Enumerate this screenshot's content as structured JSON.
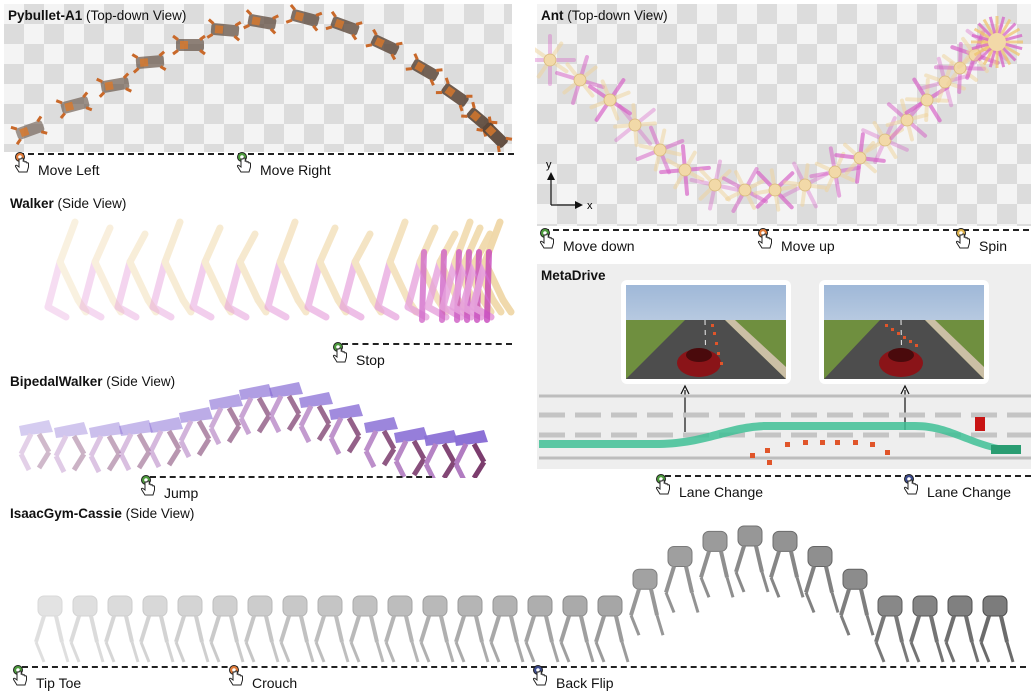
{
  "panels": {
    "pybullet": {
      "name": "Pybullet-A1",
      "view": "(Top-down View)",
      "markers": [
        "Move Left",
        "Move Right"
      ],
      "marker_colors": [
        "#e07b39",
        "#4c9a3c"
      ]
    },
    "ant": {
      "name": "Ant",
      "view": "(Top-down View)",
      "markers": [
        "Move down",
        "Move up",
        "Spin"
      ],
      "marker_colors": [
        "#4c9a3c",
        "#e07b39",
        "#e0b44c"
      ],
      "axis_x": "x",
      "axis_y": "y"
    },
    "walker": {
      "name": "Walker",
      "view": "(Side View)",
      "markers": [
        "Stop"
      ],
      "marker_colors": [
        "#4c9a3c"
      ]
    },
    "metadrive": {
      "name": "MetaDrive",
      "markers": [
        "Lane Change",
        "Lane Change"
      ],
      "marker_colors": [
        "#4c9a3c",
        "#3b4a8c"
      ]
    },
    "bipedal": {
      "name": "BipedalWalker",
      "view": "(Side View)",
      "markers": [
        "Jump"
      ],
      "marker_colors": [
        "#4c9a3c"
      ]
    },
    "cassie": {
      "name": "IsaacGym-Cassie",
      "view": "(Side View)",
      "markers": [
        "Tip Toe",
        "Crouch",
        "Back Flip"
      ],
      "marker_colors": [
        "#4c9a3c",
        "#e07b39",
        "#3b4a8c"
      ]
    }
  },
  "icons": {
    "marker": "hand-pointer-icon"
  }
}
